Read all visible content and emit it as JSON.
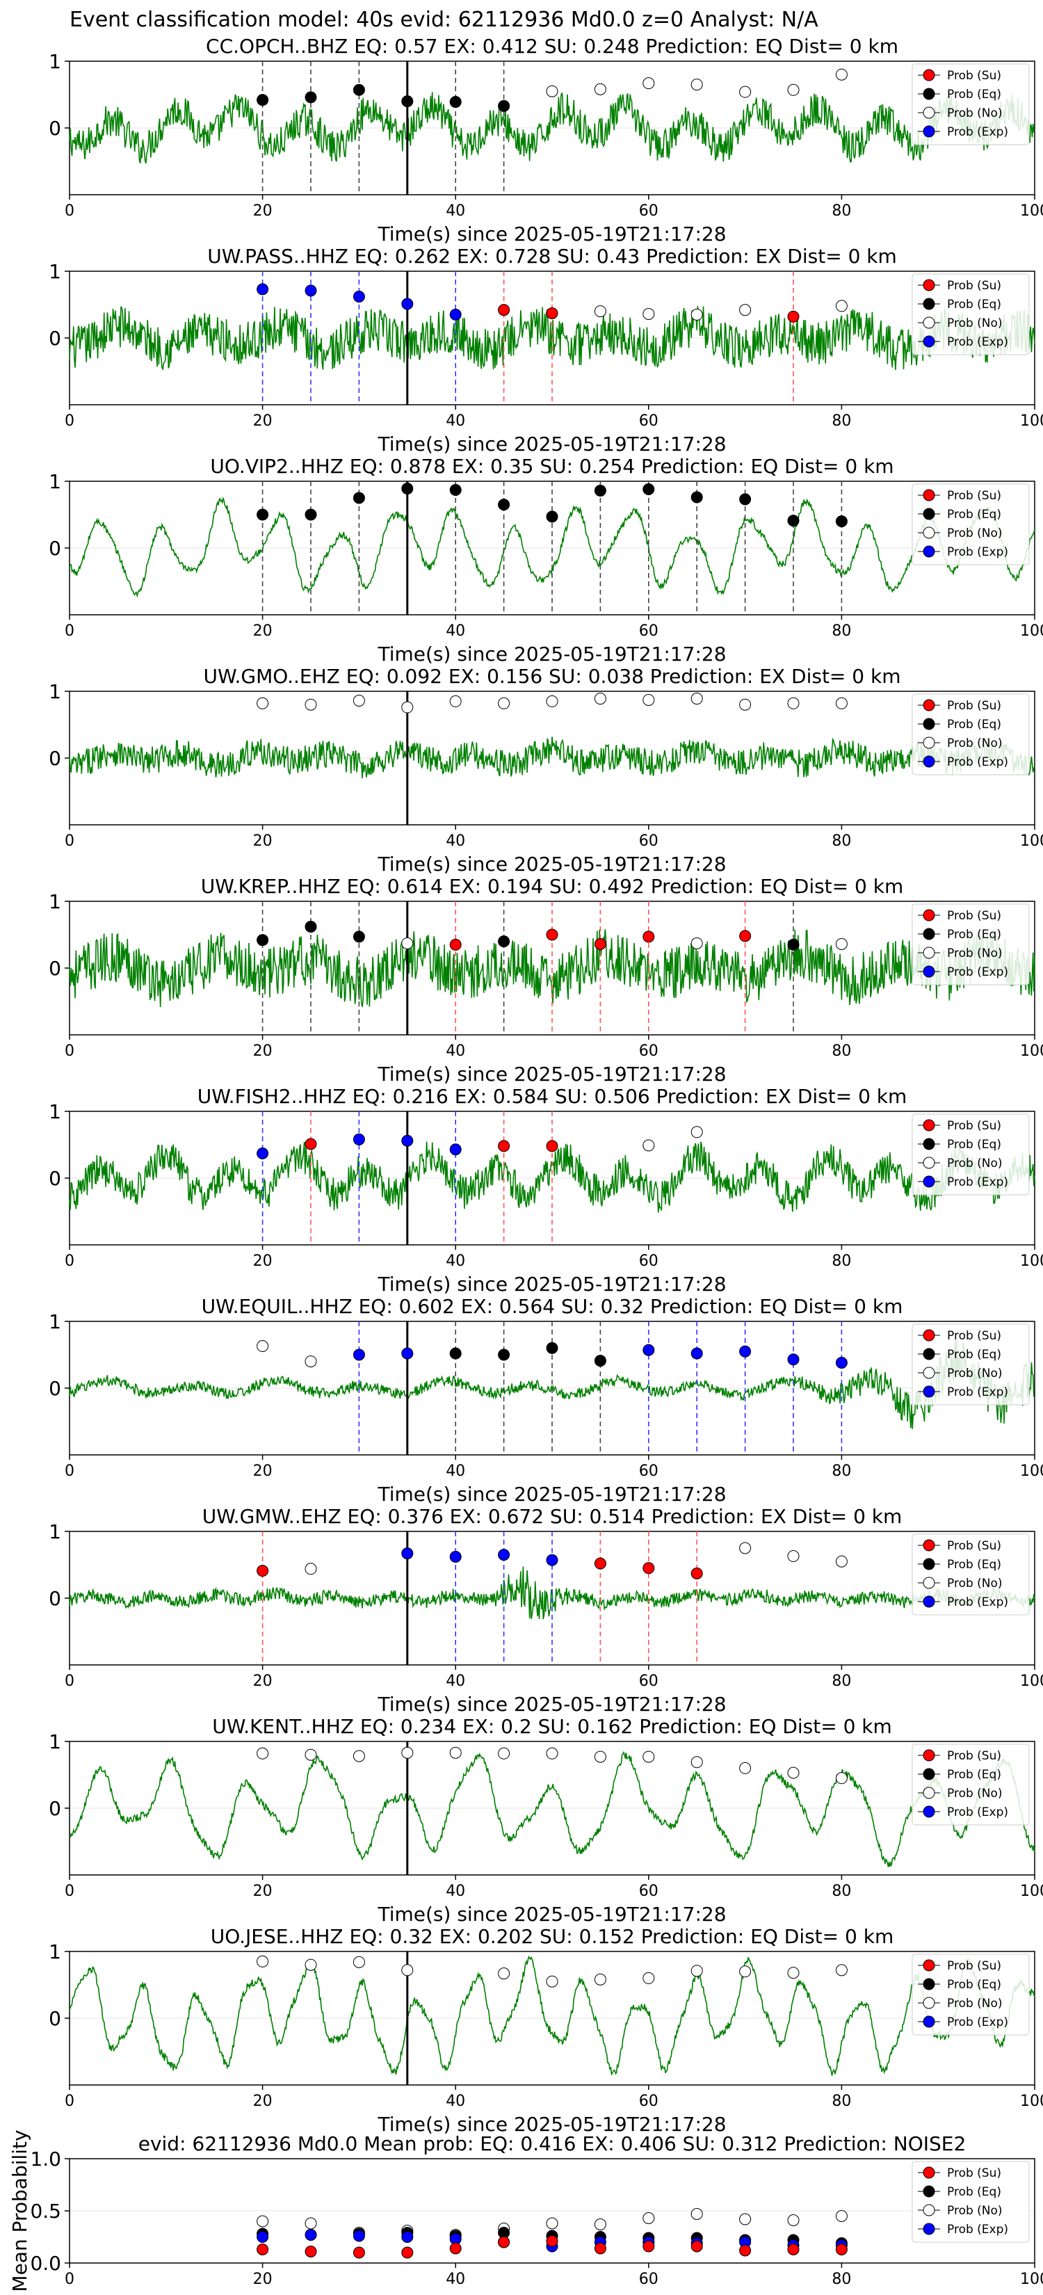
{
  "figure_title": "Event classification model: 40s evid: 62112936 Md0.0 z=0 Analyst: N/A",
  "legend_labels": [
    "Prob (Su)",
    "Prob (Eq)",
    "Prob (No)",
    "Prob (Exp)"
  ],
  "colors": {
    "su": "#ff0000",
    "eq": "#000000",
    "no": "#ffffff",
    "exp": "#0000ff",
    "waveform": "#008000",
    "origin_line": "#000000"
  },
  "chart_data": [
    {
      "type": "line",
      "station": "CC.OPCH..BHZ",
      "title": "CC.OPCH..BHZ   EQ: 0.57   EX: 0.412   SU: 0.248   Prediction: EQ    Dist= 0 km",
      "xlabel": "Time(s) since 2025-05-19T21:17:28",
      "xlim": [
        0,
        100
      ],
      "ylim": [
        -1,
        1
      ],
      "xticks": [
        0,
        20,
        40,
        60,
        80,
        100
      ],
      "yticks": [
        1,
        0
      ],
      "origin_time": 35,
      "waveform_amp": 0.55,
      "waveform_style": "mixed",
      "points": [
        {
          "t": 20,
          "p": 0.42,
          "c": "eq"
        },
        {
          "t": 25,
          "p": 0.46,
          "c": "eq"
        },
        {
          "t": 30,
          "p": 0.57,
          "c": "eq"
        },
        {
          "t": 35,
          "p": 0.4,
          "c": "eq"
        },
        {
          "t": 40,
          "p": 0.39,
          "c": "eq"
        },
        {
          "t": 45,
          "p": 0.33,
          "c": "eq"
        },
        {
          "t": 50,
          "p": 0.55,
          "c": "no"
        },
        {
          "t": 55,
          "p": 0.58,
          "c": "no"
        },
        {
          "t": 60,
          "p": 0.67,
          "c": "no"
        },
        {
          "t": 65,
          "p": 0.65,
          "c": "no"
        },
        {
          "t": 70,
          "p": 0.54,
          "c": "no"
        },
        {
          "t": 75,
          "p": 0.57,
          "c": "no"
        },
        {
          "t": 80,
          "p": 0.8,
          "c": "no"
        }
      ]
    },
    {
      "type": "line",
      "station": "UW.PASS..HHZ",
      "title": "UW.PASS..HHZ   EQ: 0.262  EX: 0.728  SU: 0.43   Prediction: EX    Dist= 0 km",
      "xlabel": "Time(s) since 2025-05-19T21:17:28",
      "xlim": [
        0,
        100
      ],
      "ylim": [
        -1,
        1
      ],
      "xticks": [
        0,
        20,
        40,
        60,
        80,
        100
      ],
      "yticks": [
        1,
        0
      ],
      "origin_time": 35,
      "waveform_amp": 0.5,
      "waveform_style": "noisy",
      "points": [
        {
          "t": 20,
          "p": 0.73,
          "c": "exp"
        },
        {
          "t": 25,
          "p": 0.71,
          "c": "exp"
        },
        {
          "t": 30,
          "p": 0.62,
          "c": "exp"
        },
        {
          "t": 35,
          "p": 0.51,
          "c": "exp"
        },
        {
          "t": 40,
          "p": 0.35,
          "c": "exp"
        },
        {
          "t": 45,
          "p": 0.42,
          "c": "su"
        },
        {
          "t": 50,
          "p": 0.37,
          "c": "su"
        },
        {
          "t": 55,
          "p": 0.4,
          "c": "no"
        },
        {
          "t": 60,
          "p": 0.36,
          "c": "no"
        },
        {
          "t": 65,
          "p": 0.35,
          "c": "no"
        },
        {
          "t": 70,
          "p": 0.42,
          "c": "no"
        },
        {
          "t": 75,
          "p": 0.32,
          "c": "su"
        },
        {
          "t": 80,
          "p": 0.48,
          "c": "no"
        }
      ]
    },
    {
      "type": "line",
      "station": "UO.VIP2..HHZ",
      "title": "UO.VIP2..HHZ   EQ: 0.878  EX: 0.35  SU: 0.254   Prediction: EQ    Dist= 0 km",
      "xlabel": "Time(s) since 2025-05-19T21:17:28",
      "xlim": [
        0,
        100
      ],
      "ylim": [
        -1,
        1
      ],
      "xticks": [
        0,
        20,
        40,
        60,
        80,
        100
      ],
      "yticks": [
        1,
        0
      ],
      "origin_time": 35,
      "waveform_amp": 0.62,
      "waveform_style": "smooth",
      "points": [
        {
          "t": 20,
          "p": 0.5,
          "c": "eq"
        },
        {
          "t": 25,
          "p": 0.5,
          "c": "eq"
        },
        {
          "t": 30,
          "p": 0.75,
          "c": "eq"
        },
        {
          "t": 35,
          "p": 0.89,
          "c": "eq"
        },
        {
          "t": 40,
          "p": 0.87,
          "c": "eq"
        },
        {
          "t": 45,
          "p": 0.65,
          "c": "eq"
        },
        {
          "t": 50,
          "p": 0.47,
          "c": "eq"
        },
        {
          "t": 55,
          "p": 0.86,
          "c": "eq"
        },
        {
          "t": 60,
          "p": 0.88,
          "c": "eq"
        },
        {
          "t": 65,
          "p": 0.76,
          "c": "eq"
        },
        {
          "t": 70,
          "p": 0.73,
          "c": "eq"
        },
        {
          "t": 75,
          "p": 0.41,
          "c": "eq"
        },
        {
          "t": 80,
          "p": 0.4,
          "c": "eq"
        }
      ]
    },
    {
      "type": "line",
      "station": "UW.GMO..EHZ",
      "title": "UW.GMO..EHZ   EQ: 0.092  EX: 0.156  SU: 0.038   Prediction: EX    Dist= 0 km",
      "xlabel": "Time(s) since 2025-05-19T21:17:28",
      "xlim": [
        0,
        100
      ],
      "ylim": [
        -1,
        1
      ],
      "xticks": [
        0,
        20,
        40,
        60,
        80,
        100
      ],
      "yticks": [
        1,
        0
      ],
      "origin_time": 35,
      "waveform_amp": 0.32,
      "waveform_style": "noisy",
      "points": [
        {
          "t": 20,
          "p": 0.82,
          "c": "no"
        },
        {
          "t": 25,
          "p": 0.8,
          "c": "no"
        },
        {
          "t": 30,
          "p": 0.86,
          "c": "no"
        },
        {
          "t": 35,
          "p": 0.76,
          "c": "no"
        },
        {
          "t": 40,
          "p": 0.85,
          "c": "no"
        },
        {
          "t": 45,
          "p": 0.82,
          "c": "no"
        },
        {
          "t": 50,
          "p": 0.85,
          "c": "no"
        },
        {
          "t": 55,
          "p": 0.89,
          "c": "no"
        },
        {
          "t": 60,
          "p": 0.87,
          "c": "no"
        },
        {
          "t": 65,
          "p": 0.89,
          "c": "no"
        },
        {
          "t": 70,
          "p": 0.8,
          "c": "no"
        },
        {
          "t": 75,
          "p": 0.82,
          "c": "no"
        },
        {
          "t": 80,
          "p": 0.82,
          "c": "no"
        }
      ]
    },
    {
      "type": "line",
      "station": "UW.KREP..HHZ",
      "title": "UW.KREP..HHZ   EQ: 0.614  EX: 0.194  SU: 0.492   Prediction: EQ    Dist= 0 km",
      "xlabel": "Time(s) since 2025-05-19T21:17:28",
      "xlim": [
        0,
        100
      ],
      "ylim": [
        -1,
        1
      ],
      "xticks": [
        0,
        20,
        40,
        60,
        80,
        100
      ],
      "yticks": [
        1,
        0
      ],
      "origin_time": 35,
      "waveform_amp": 0.6,
      "waveform_style": "noisy",
      "points": [
        {
          "t": 20,
          "p": 0.42,
          "c": "eq"
        },
        {
          "t": 25,
          "p": 0.62,
          "c": "eq"
        },
        {
          "t": 30,
          "p": 0.47,
          "c": "eq"
        },
        {
          "t": 35,
          "p": 0.37,
          "c": "no"
        },
        {
          "t": 40,
          "p": 0.35,
          "c": "su"
        },
        {
          "t": 45,
          "p": 0.4,
          "c": "eq"
        },
        {
          "t": 50,
          "p": 0.5,
          "c": "su"
        },
        {
          "t": 55,
          "p": 0.36,
          "c": "su"
        },
        {
          "t": 60,
          "p": 0.47,
          "c": "su"
        },
        {
          "t": 65,
          "p": 0.37,
          "c": "no"
        },
        {
          "t": 70,
          "p": 0.48,
          "c": "su"
        },
        {
          "t": 75,
          "p": 0.35,
          "c": "eq"
        },
        {
          "t": 80,
          "p": 0.36,
          "c": "no"
        }
      ]
    },
    {
      "type": "line",
      "station": "UW.FISH2..HHZ",
      "title": "UW.FISH2..HHZ   EQ: 0.216  EX: 0.584  SU: 0.506   Prediction: EX    Dist= 0 km",
      "xlabel": "Time(s) since 2025-05-19T21:17:28",
      "xlim": [
        0,
        100
      ],
      "ylim": [
        -1,
        1
      ],
      "xticks": [
        0,
        20,
        40,
        60,
        80,
        100
      ],
      "yticks": [
        1,
        0
      ],
      "origin_time": 35,
      "waveform_amp": 0.55,
      "waveform_style": "mixed",
      "points": [
        {
          "t": 20,
          "p": 0.37,
          "c": "exp"
        },
        {
          "t": 25,
          "p": 0.51,
          "c": "su"
        },
        {
          "t": 30,
          "p": 0.58,
          "c": "exp"
        },
        {
          "t": 35,
          "p": 0.56,
          "c": "exp"
        },
        {
          "t": 40,
          "p": 0.43,
          "c": "exp"
        },
        {
          "t": 45,
          "p": 0.48,
          "c": "su"
        },
        {
          "t": 50,
          "p": 0.48,
          "c": "su"
        },
        {
          "t": 60,
          "p": 0.49,
          "c": "no"
        },
        {
          "t": 65,
          "p": 0.69,
          "c": "no"
        }
      ]
    },
    {
      "type": "line",
      "station": "UW.EQUIL..HHZ",
      "title": "UW.EQUIL..HHZ   EQ: 0.602  EX: 0.564  SU: 0.32   Prediction: EQ    Dist= 0 km",
      "xlabel": "Time(s) since 2025-05-19T21:17:28",
      "xlim": [
        0,
        100
      ],
      "ylim": [
        -1,
        1
      ],
      "xticks": [
        0,
        20,
        40,
        60,
        80,
        100
      ],
      "yticks": [
        1,
        0
      ],
      "origin_time": 35,
      "waveform_amp": 0.18,
      "waveform_style": "quiet_burst_end",
      "points": [
        {
          "t": 20,
          "p": 0.63,
          "c": "no"
        },
        {
          "t": 25,
          "p": 0.4,
          "c": "no"
        },
        {
          "t": 30,
          "p": 0.5,
          "c": "exp"
        },
        {
          "t": 35,
          "p": 0.52,
          "c": "exp"
        },
        {
          "t": 40,
          "p": 0.52,
          "c": "eq"
        },
        {
          "t": 45,
          "p": 0.5,
          "c": "eq"
        },
        {
          "t": 50,
          "p": 0.6,
          "c": "eq"
        },
        {
          "t": 55,
          "p": 0.41,
          "c": "eq"
        },
        {
          "t": 60,
          "p": 0.57,
          "c": "exp"
        },
        {
          "t": 65,
          "p": 0.52,
          "c": "exp"
        },
        {
          "t": 70,
          "p": 0.55,
          "c": "exp"
        },
        {
          "t": 75,
          "p": 0.43,
          "c": "exp"
        },
        {
          "t": 80,
          "p": 0.38,
          "c": "exp"
        }
      ]
    },
    {
      "type": "line",
      "station": "UW.GMW..EHZ",
      "title": "UW.GMW..EHZ   EQ: 0.376  EX: 0.672  SU: 0.514   Prediction: EX    Dist= 0 km",
      "xlabel": "Time(s) since 2025-05-19T21:17:28",
      "xlim": [
        0,
        100
      ],
      "ylim": [
        -1,
        1
      ],
      "xticks": [
        0,
        20,
        40,
        60,
        80,
        100
      ],
      "yticks": [
        1,
        0
      ],
      "origin_time": 35,
      "waveform_amp": 0.16,
      "waveform_style": "quiet_burst_mid",
      "points": [
        {
          "t": 20,
          "p": 0.41,
          "c": "su"
        },
        {
          "t": 25,
          "p": 0.44,
          "c": "no"
        },
        {
          "t": 35,
          "p": 0.67,
          "c": "exp"
        },
        {
          "t": 40,
          "p": 0.62,
          "c": "exp"
        },
        {
          "t": 45,
          "p": 0.65,
          "c": "exp"
        },
        {
          "t": 50,
          "p": 0.57,
          "c": "exp"
        },
        {
          "t": 55,
          "p": 0.52,
          "c": "su"
        },
        {
          "t": 60,
          "p": 0.45,
          "c": "su"
        },
        {
          "t": 65,
          "p": 0.37,
          "c": "su"
        },
        {
          "t": 70,
          "p": 0.75,
          "c": "no"
        },
        {
          "t": 75,
          "p": 0.63,
          "c": "no"
        },
        {
          "t": 80,
          "p": 0.55,
          "c": "no"
        }
      ]
    },
    {
      "type": "line",
      "station": "UW.KENT..HHZ",
      "title": "UW.KENT..HHZ   EQ: 0.234  EX: 0.2  SU: 0.162   Prediction: EQ    Dist= 0 km",
      "xlabel": "Time(s) since 2025-05-19T21:17:28",
      "xlim": [
        0,
        100
      ],
      "ylim": [
        -1,
        1
      ],
      "xticks": [
        0,
        20,
        40,
        60,
        80,
        100
      ],
      "yticks": [
        1,
        0
      ],
      "origin_time": 35,
      "waveform_amp": 0.72,
      "waveform_style": "smooth",
      "points": [
        {
          "t": 20,
          "p": 0.82,
          "c": "no"
        },
        {
          "t": 25,
          "p": 0.8,
          "c": "no"
        },
        {
          "t": 30,
          "p": 0.78,
          "c": "no"
        },
        {
          "t": 35,
          "p": 0.83,
          "c": "no"
        },
        {
          "t": 40,
          "p": 0.83,
          "c": "no"
        },
        {
          "t": 45,
          "p": 0.82,
          "c": "no"
        },
        {
          "t": 50,
          "p": 0.82,
          "c": "no"
        },
        {
          "t": 55,
          "p": 0.77,
          "c": "no"
        },
        {
          "t": 60,
          "p": 0.77,
          "c": "no"
        },
        {
          "t": 65,
          "p": 0.69,
          "c": "no"
        },
        {
          "t": 70,
          "p": 0.6,
          "c": "no"
        },
        {
          "t": 75,
          "p": 0.53,
          "c": "no"
        },
        {
          "t": 80,
          "p": 0.45,
          "c": "no"
        }
      ]
    },
    {
      "type": "line",
      "station": "UO.JESE..HHZ",
      "title": "UO.JESE..HHZ   EQ: 0.32  EX: 0.202  SU: 0.152   Prediction: EQ    Dist= 0 km",
      "xlabel": "Time(s) since 2025-05-19T21:17:28",
      "xlim": [
        0,
        100
      ],
      "ylim": [
        -1,
        1
      ],
      "xticks": [
        0,
        20,
        40,
        60,
        80,
        100
      ],
      "yticks": [
        1,
        0
      ],
      "origin_time": 35,
      "waveform_amp": 0.75,
      "waveform_style": "smooth",
      "points": [
        {
          "t": 20,
          "p": 0.85,
          "c": "no"
        },
        {
          "t": 25,
          "p": 0.8,
          "c": "no"
        },
        {
          "t": 30,
          "p": 0.84,
          "c": "no"
        },
        {
          "t": 35,
          "p": 0.72,
          "c": "no"
        },
        {
          "t": 45,
          "p": 0.67,
          "c": "no"
        },
        {
          "t": 50,
          "p": 0.55,
          "c": "no"
        },
        {
          "t": 55,
          "p": 0.58,
          "c": "no"
        },
        {
          "t": 60,
          "p": 0.6,
          "c": "no"
        },
        {
          "t": 65,
          "p": 0.71,
          "c": "no"
        },
        {
          "t": 70,
          "p": 0.7,
          "c": "no"
        },
        {
          "t": 75,
          "p": 0.68,
          "c": "no"
        },
        {
          "t": 80,
          "p": 0.72,
          "c": "no"
        }
      ]
    },
    {
      "type": "scatter",
      "station": "mean",
      "title": "evid: 62112936  Md0.0   Mean prob:   EQ: 0.416  EX: 0.406  SU: 0.312   Prediction: NOISE2",
      "xlabel": "",
      "ylabel": "Mean Probability",
      "xlim": [
        0,
        100
      ],
      "ylim": [
        0,
        1
      ],
      "xticks": [
        0,
        20,
        40,
        60,
        80,
        100
      ],
      "yticks": [
        1.0,
        0.5,
        0.0
      ],
      "ytick_labels": [
        "1.0",
        "0.5",
        "0.0"
      ],
      "x": [
        20,
        25,
        30,
        35,
        40,
        45,
        50,
        55,
        60,
        65,
        70,
        75,
        80
      ],
      "series": [
        {
          "name": "Prob (No)",
          "c": "no",
          "values": [
            0.4,
            0.38,
            0.29,
            0.31,
            0.27,
            0.33,
            0.38,
            0.37,
            0.43,
            0.47,
            0.42,
            0.41,
            0.45
          ]
        },
        {
          "name": "Prob (Eq)",
          "c": "eq",
          "values": [
            0.28,
            0.27,
            0.28,
            0.29,
            0.26,
            0.29,
            0.26,
            0.25,
            0.24,
            0.24,
            0.22,
            0.22,
            0.19
          ]
        },
        {
          "name": "Prob (Exp)",
          "c": "exp",
          "values": [
            0.25,
            0.27,
            0.26,
            0.25,
            0.23,
            0.2,
            0.16,
            0.2,
            0.2,
            0.19,
            0.2,
            0.17,
            0.17
          ]
        },
        {
          "name": "Prob (Su)",
          "c": "su",
          "values": [
            0.13,
            0.11,
            0.1,
            0.1,
            0.14,
            0.2,
            0.21,
            0.14,
            0.16,
            0.16,
            0.12,
            0.13,
            0.13
          ]
        }
      ]
    }
  ]
}
